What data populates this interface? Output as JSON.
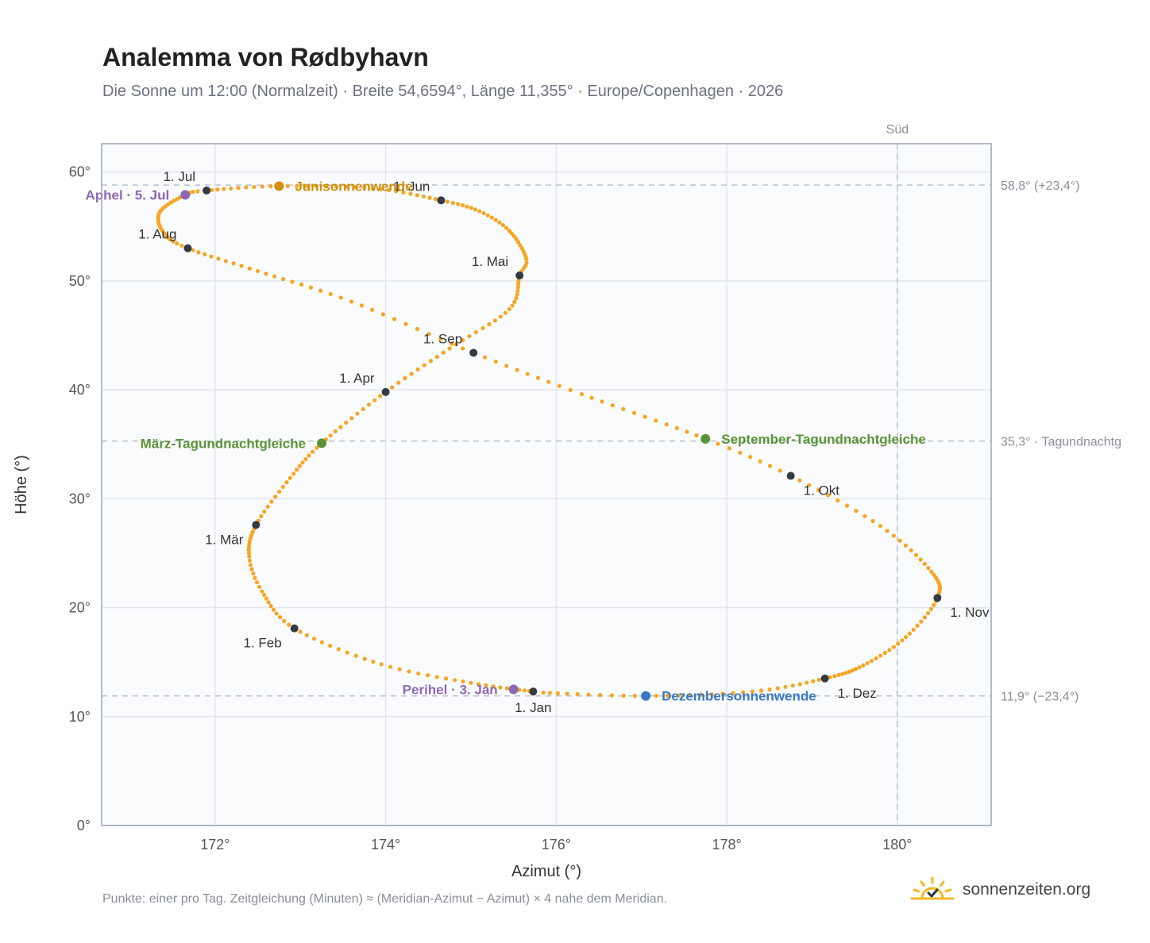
{
  "header": {
    "title": "Analemma von Rødbyhavn",
    "subtitle": "Die Sonne um 12:00 (Normalzeit) · Breite 54,6594°, Länge 11,355° · Europe/Copenhagen · 2026"
  },
  "footer": {
    "note": "Punkte: einer pro Tag. Zeitgleichung (Minuten) ≈ (Meridian-Azimut − Azimut) × 4 nahe dem Meridian.",
    "brand": "sonnenzeiten.org",
    "brand_icon": "sun-check-icon"
  },
  "chart_data": {
    "type": "scatter",
    "title": "Analemma von Rødbyhavn",
    "xlabel": "Azimut (°)",
    "ylabel": "Höhe (°)",
    "xlim": [
      170.67,
      181.1
    ],
    "ylim": [
      0,
      62.6
    ],
    "x_ticks": [
      172,
      174,
      176,
      178,
      180
    ],
    "x_tick_labels": [
      "172°",
      "174°",
      "176°",
      "178°",
      "180°"
    ],
    "y_ticks": [
      0,
      10,
      20,
      30,
      40,
      50,
      60
    ],
    "y_tick_labels": [
      "0°",
      "10°",
      "20°",
      "30°",
      "40°",
      "50°",
      "60°"
    ],
    "grid": true,
    "south_line": {
      "x": 180,
      "label": "Süd"
    },
    "reference_lines": [
      {
        "y": 58.8,
        "label": "58,8° (+23,4°)"
      },
      {
        "y": 35.3,
        "label": "35,3° · Tagundnachtg"
      },
      {
        "y": 11.9,
        "label": "11,9° (−23,4°)"
      }
    ],
    "colors": {
      "curve": "#f5a623",
      "month": "#333a44",
      "solstice_summer": "#d18f0a",
      "solstice_winter": "#3b78c3",
      "equinox": "#5a9436",
      "apsis": "#8e68b5",
      "reference_line": "#b8c2cc",
      "plot_bg": "#f9fbfd"
    },
    "anchor_points": [
      {
        "doy": 1,
        "x": 175.73,
        "y": 12.3
      },
      {
        "doy": 11,
        "x": 175.0,
        "y": 13.1
      },
      {
        "doy": 21,
        "x": 173.95,
        "y": 14.8
      },
      {
        "doy": 32,
        "x": 172.93,
        "y": 18.1
      },
      {
        "doy": 42,
        "x": 172.55,
        "y": 21.5
      },
      {
        "doy": 50,
        "x": 172.4,
        "y": 24.7
      },
      {
        "doy": 60,
        "x": 172.48,
        "y": 27.6
      },
      {
        "doy": 70,
        "x": 172.88,
        "y": 31.9
      },
      {
        "doy": 79,
        "x": 173.25,
        "y": 35.1
      },
      {
        "doy": 91,
        "x": 174.0,
        "y": 39.8
      },
      {
        "doy": 101,
        "x": 174.75,
        "y": 43.8
      },
      {
        "doy": 111,
        "x": 175.45,
        "y": 47.4
      },
      {
        "doy": 121,
        "x": 175.57,
        "y": 50.5
      },
      {
        "doy": 126,
        "x": 175.65,
        "y": 52.0
      },
      {
        "doy": 136,
        "x": 175.45,
        "y": 54.6
      },
      {
        "doy": 144,
        "x": 175.1,
        "y": 56.4
      },
      {
        "doy": 152,
        "x": 174.65,
        "y": 57.4
      },
      {
        "doy": 162,
        "x": 173.85,
        "y": 58.5
      },
      {
        "doy": 172,
        "x": 172.75,
        "y": 58.7
      },
      {
        "doy": 182,
        "x": 171.9,
        "y": 58.3
      },
      {
        "doy": 186,
        "x": 171.65,
        "y": 57.9
      },
      {
        "doy": 196,
        "x": 171.35,
        "y": 56.3
      },
      {
        "doy": 206,
        "x": 171.4,
        "y": 54.4
      },
      {
        "doy": 213,
        "x": 171.68,
        "y": 53.0
      },
      {
        "doy": 223,
        "x": 172.5,
        "y": 50.9
      },
      {
        "doy": 233,
        "x": 173.6,
        "y": 48.1
      },
      {
        "doy": 244,
        "x": 175.03,
        "y": 43.4
      },
      {
        "doy": 254,
        "x": 176.3,
        "y": 39.6
      },
      {
        "doy": 266,
        "x": 177.75,
        "y": 35.5
      },
      {
        "doy": 274,
        "x": 178.75,
        "y": 32.1
      },
      {
        "doy": 284,
        "x": 179.8,
        "y": 27.5
      },
      {
        "doy": 294,
        "x": 180.4,
        "y": 23.3
      },
      {
        "doy": 305,
        "x": 180.47,
        "y": 20.9
      },
      {
        "doy": 315,
        "x": 180.1,
        "y": 17.3
      },
      {
        "doy": 325,
        "x": 179.6,
        "y": 14.7
      },
      {
        "doy": 335,
        "x": 179.15,
        "y": 13.5
      },
      {
        "doy": 345,
        "x": 178.3,
        "y": 12.3
      },
      {
        "doy": 355,
        "x": 177.05,
        "y": 11.9
      },
      {
        "doy": 365,
        "x": 175.85,
        "y": 12.2
      }
    ],
    "month_markers": [
      {
        "label": "1. Jan",
        "x": 175.73,
        "y": 12.3,
        "anchor": "below"
      },
      {
        "label": "1. Feb",
        "x": 172.93,
        "y": 18.1,
        "anchor": "below-left"
      },
      {
        "label": "1. Mär",
        "x": 172.48,
        "y": 27.6,
        "anchor": "below-left"
      },
      {
        "label": "1. Apr",
        "x": 174.0,
        "y": 39.8,
        "anchor": "above-left"
      },
      {
        "label": "1. Mai",
        "x": 175.57,
        "y": 50.5,
        "anchor": "above-left"
      },
      {
        "label": "1. Jun",
        "x": 174.65,
        "y": 57.4,
        "anchor": "above-left"
      },
      {
        "label": "1. Jul",
        "x": 171.9,
        "y": 58.3,
        "anchor": "above-left"
      },
      {
        "label": "1. Aug",
        "x": 171.68,
        "y": 53.0,
        "anchor": "above-left"
      },
      {
        "label": "1. Sep",
        "x": 175.03,
        "y": 43.4,
        "anchor": "above-left"
      },
      {
        "label": "1. Okt",
        "x": 178.75,
        "y": 32.1,
        "anchor": "below-right"
      },
      {
        "label": "1. Nov",
        "x": 180.47,
        "y": 20.9,
        "anchor": "below-right"
      },
      {
        "label": "1. Dez",
        "x": 179.15,
        "y": 13.5,
        "anchor": "below-right"
      }
    ],
    "events": [
      {
        "label": "Junisonnenwende",
        "x": 172.75,
        "y": 58.7,
        "color": "#d18f0a",
        "anchor": "right"
      },
      {
        "label": "Dezembersonnenwende",
        "x": 177.05,
        "y": 11.9,
        "color": "#3b78c3",
        "anchor": "right"
      },
      {
        "label": "März-Tagundnachtgleiche",
        "x": 173.25,
        "y": 35.1,
        "color": "#5a9436",
        "anchor": "left"
      },
      {
        "label": "September-Tagundnachtgleiche",
        "x": 177.75,
        "y": 35.5,
        "color": "#5a9436",
        "anchor": "right"
      },
      {
        "label": "Aphel · 5. Jul",
        "x": 171.65,
        "y": 57.9,
        "color": "#8e68b5",
        "anchor": "left"
      },
      {
        "label": "Perihel · 3. Jan",
        "x": 175.5,
        "y": 12.5,
        "color": "#8e68b5",
        "anchor": "left"
      }
    ]
  }
}
